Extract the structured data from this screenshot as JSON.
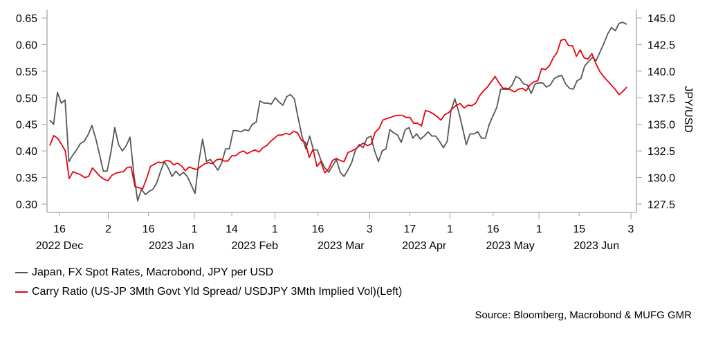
{
  "chart_data": {
    "type": "line",
    "title": "",
    "xlabel": "",
    "ylabel_left": "",
    "ylabel_right": "JPY/USD",
    "x_start": "2022-12-16",
    "x_end": "2023-06-03",
    "ylim_left": [
      0.3,
      0.65
    ],
    "ylim_right": [
      127.5,
      145.0
    ],
    "yticks_left": [
      "0.30",
      "0.35",
      "0.40",
      "0.45",
      "0.50",
      "0.55",
      "0.60",
      "0.65"
    ],
    "yticks_right": [
      "127.5",
      "130.0",
      "132.5",
      "135.0",
      "137.5",
      "140.0",
      "142.5",
      "145.0"
    ],
    "xticks": [
      {
        "date": "2022-12-16",
        "label": "16"
      },
      {
        "date": "2023-01-02",
        "label": "2"
      },
      {
        "date": "2023-01-16",
        "label": "16"
      },
      {
        "date": "2023-02-01",
        "label": "1"
      },
      {
        "date": "2023-02-14",
        "label": "14"
      },
      {
        "date": "2023-03-01",
        "label": "1"
      },
      {
        "date": "2023-03-16",
        "label": "16"
      },
      {
        "date": "2023-04-03",
        "label": "3"
      },
      {
        "date": "2023-04-17",
        "label": "17"
      },
      {
        "date": "2023-05-01",
        "label": "1"
      },
      {
        "date": "2023-05-16",
        "label": "16"
      },
      {
        "date": "2023-06-01",
        "label": "1"
      },
      {
        "date": "2023-06-15",
        "label": "15"
      },
      {
        "date": "2023-07-03",
        "label": "3"
      }
    ],
    "month_labels": [
      {
        "date": "2022-12-16",
        "label": "2022 Dec"
      },
      {
        "date": "2023-01-24",
        "label": "2023 Jan"
      },
      {
        "date": "2023-02-22",
        "label": "2023 Feb"
      },
      {
        "date": "2023-03-24",
        "label": "2023 Mar"
      },
      {
        "date": "2023-04-22",
        "label": "2023 Apr"
      },
      {
        "date": "2023-05-22",
        "label": "2023 May"
      },
      {
        "date": "2023-06-21",
        "label": "2023 Jun"
      }
    ],
    "grid": false,
    "legend_position": "bottom-left",
    "series": [
      {
        "name": "Japan, FX Spot Rates, Macrobond, JPY per USD",
        "axis": "right",
        "color": "#555555",
        "values": [
          135.4,
          135.0,
          138.0,
          137.0,
          137.3,
          131.5,
          132.1,
          132.6,
          133.2,
          133.4,
          134.0,
          134.9,
          133.7,
          132.2,
          130.6,
          130.6,
          132.4,
          134.7,
          133.1,
          132.5,
          133.0,
          133.8,
          130.3,
          127.8,
          128.9,
          128.4,
          128.7,
          128.9,
          129.5,
          130.6,
          131.5,
          130.9,
          130.1,
          130.6,
          130.2,
          130.5,
          130.1,
          129.3,
          128.5,
          131.5,
          133.6,
          131.5,
          131.7,
          131.2,
          130.7,
          131.4,
          132.7,
          132.7,
          134.4,
          134.4,
          134.3,
          134.5,
          134.4,
          135.0,
          135.2,
          137.2,
          137.0,
          137.0,
          136.9,
          137.5,
          137.1,
          136.8,
          137.6,
          137.8,
          137.4,
          135.6,
          133.9,
          132.7,
          133.9,
          132.6,
          132.6,
          131.6,
          130.9,
          130.5,
          131.1,
          131.7,
          130.5,
          130.1,
          130.7,
          131.4,
          132.6,
          133.1,
          132.8,
          133.7,
          133.9,
          132.5,
          131.5,
          132.5,
          132.7,
          134.5,
          134.2,
          134.0,
          133.3,
          134.5,
          134.7,
          133.7,
          134.1,
          133.6,
          133.9,
          134.3,
          133.9,
          133.9,
          133.4,
          132.8,
          133.4,
          136.3,
          137.4,
          136.2,
          134.7,
          133.1,
          134.1,
          134.1,
          134.3,
          133.7,
          133.7,
          135.0,
          135.8,
          136.6,
          138.3,
          138.3,
          138.3,
          138.7,
          139.5,
          139.3,
          138.8,
          138.7,
          137.9,
          138.8,
          138.9,
          138.9,
          138.5,
          138.7,
          139.3,
          139.5,
          139.6,
          138.8,
          138.4,
          138.3,
          139.1,
          139.3,
          140.5,
          140.9,
          141.3,
          141.0,
          141.8,
          142.6,
          143.5,
          144.1,
          143.8,
          144.5,
          144.6,
          144.4
        ]
      },
      {
        "name": "Carry Ratio (US-JP 3Mth Govt Yld Spread/ USDJPY 3Mth Implied Vol)(Left)",
        "axis": "left",
        "color": "#e8000b",
        "values": [
          0.41,
          0.429,
          0.424,
          0.413,
          0.4,
          0.348,
          0.361,
          0.358,
          0.355,
          0.35,
          0.352,
          0.368,
          0.36,
          0.352,
          0.347,
          0.344,
          0.354,
          0.358,
          0.36,
          0.361,
          0.369,
          0.37,
          0.333,
          0.331,
          0.329,
          0.348,
          0.371,
          0.375,
          0.379,
          0.378,
          0.382,
          0.381,
          0.374,
          0.377,
          0.372,
          0.363,
          0.37,
          0.367,
          0.365,
          0.371,
          0.376,
          0.378,
          0.376,
          0.383,
          0.385,
          0.381,
          0.381,
          0.391,
          0.391,
          0.397,
          0.4,
          0.395,
          0.399,
          0.402,
          0.398,
          0.406,
          0.41,
          0.418,
          0.424,
          0.43,
          0.43,
          0.433,
          0.431,
          0.437,
          0.434,
          0.42,
          0.416,
          0.388,
          0.403,
          0.371,
          0.38,
          0.359,
          0.366,
          0.382,
          0.386,
          0.382,
          0.38,
          0.397,
          0.4,
          0.404,
          0.41,
          0.415,
          0.41,
          0.413,
          0.435,
          0.442,
          0.458,
          0.461,
          0.463,
          0.466,
          0.467,
          0.467,
          0.463,
          0.463,
          0.452,
          0.452,
          0.447,
          0.476,
          0.474,
          0.47,
          0.465,
          0.458,
          0.468,
          0.472,
          0.48,
          0.486,
          0.489,
          0.481,
          0.486,
          0.485,
          0.49,
          0.504,
          0.513,
          0.52,
          0.53,
          0.54,
          0.528,
          0.518,
          0.518,
          0.515,
          0.511,
          0.516,
          0.518,
          0.513,
          0.524,
          0.53,
          0.532,
          0.555,
          0.553,
          0.56,
          0.575,
          0.585,
          0.608,
          0.61,
          0.598,
          0.598,
          0.578,
          0.59,
          0.575,
          0.573,
          0.583,
          0.565,
          0.55,
          0.54,
          0.532,
          0.524,
          0.516,
          0.506,
          0.512,
          0.52
        ]
      }
    ]
  },
  "legend": {
    "items": [
      {
        "label": "Japan, FX Spot Rates, Macrobond, JPY per USD",
        "color": "#555555"
      },
      {
        "label": "Carry Ratio (US-JP 3Mth Govt Yld Spread/ USDJPY 3Mth Implied Vol)(Left)",
        "color": "#e8000b"
      }
    ]
  },
  "source": "Source: Bloomberg, Macrobond & MUFG GMR"
}
